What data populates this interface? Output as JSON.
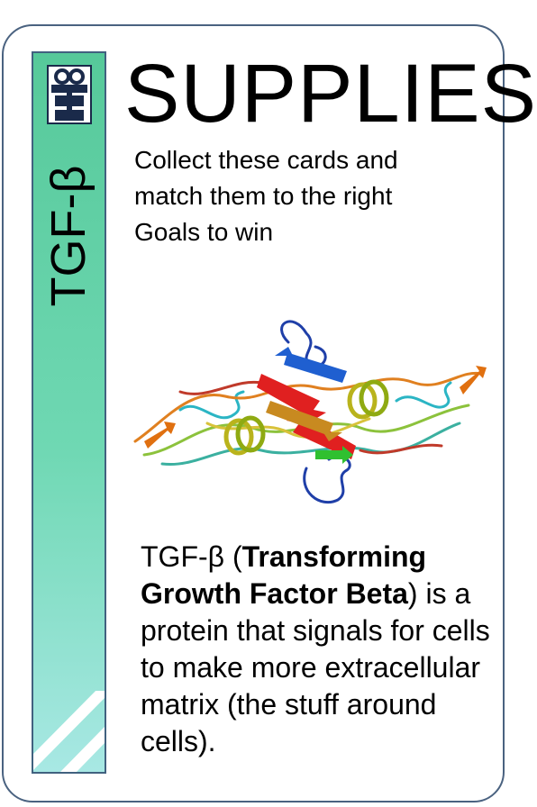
{
  "card": {
    "category": "SUPPLIES",
    "name": "TGF-β",
    "instructions": "Collect these cards and match them  to the right Goals to win",
    "description": {
      "prefix": "TGF-β (",
      "bold": "Transforming Growth Factor Beta",
      "suffix": ") is a protein that signals for cells to make more extracellular matrix (the stuff around cells)."
    },
    "icons": {
      "category_icon": "gift-icon",
      "illustration": "protein-ribbon-structure"
    },
    "colors": {
      "border": "#4a6280",
      "strip_top": "#56c99a",
      "strip_bottom": "#a8e8e4"
    }
  }
}
